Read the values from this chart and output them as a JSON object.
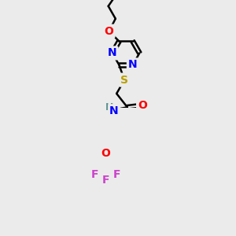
{
  "bg_color": "#ebebeb",
  "atom_colors": {
    "N": "#0000ff",
    "O": "#ff0000",
    "S": "#b8a000",
    "F": "#cc44cc",
    "H_color": "#5a9090",
    "C": "#000000"
  },
  "bond_color": "#000000",
  "bond_lw": 1.8,
  "font_size": 10,
  "figsize": [
    3.0,
    3.0
  ],
  "dpi": 100
}
